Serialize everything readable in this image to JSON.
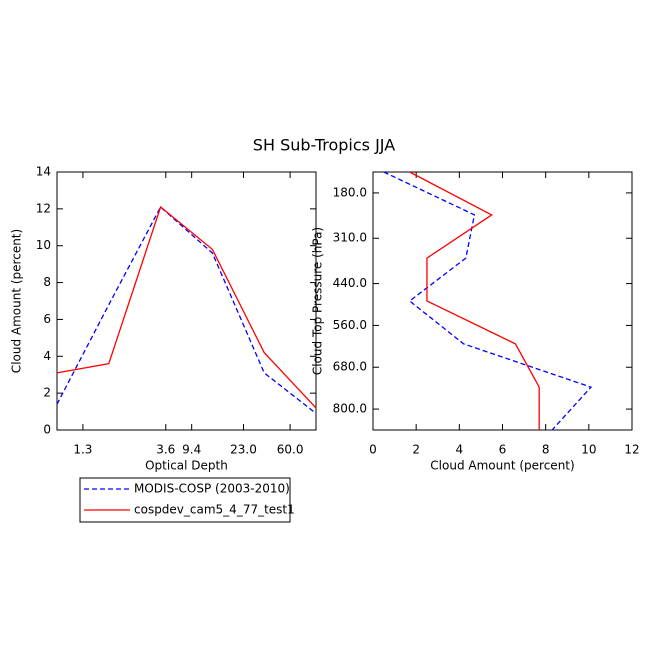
{
  "title": "SH Sub-Tropics JJA",
  "chart_data": [
    {
      "type": "line",
      "x_label": "Optical Depth",
      "y_label": "Cloud Amount (percent)",
      "x": [
        0,
        1,
        2,
        3,
        4,
        5
      ],
      "xlim": [
        0,
        5
      ],
      "xticks": [
        {
          "value": 0.5,
          "label": "1.3"
        },
        {
          "value": 2.1,
          "label": "3.6"
        },
        {
          "value": 2.6,
          "label": "9.4"
        },
        {
          "value": 3.6,
          "label": "23.0"
        },
        {
          "value": 4.5,
          "label": "60.0"
        }
      ],
      "ylim": [
        0,
        14
      ],
      "yticks": [
        0,
        2,
        4,
        6,
        8,
        10,
        12,
        14
      ],
      "series": [
        {
          "name": "MODIS-COSP (2003-2010)",
          "color": "#0000ff",
          "dash": true,
          "values": [
            1.4,
            6.8,
            12.1,
            9.6,
            3.1,
            0.9
          ]
        },
        {
          "name": "cospdev_cam5_4_77_test1",
          "color": "#ff0000",
          "dash": false,
          "values": [
            3.1,
            3.6,
            12.1,
            9.8,
            4.2,
            1.2
          ]
        }
      ]
    },
    {
      "type": "hline",
      "x_label": "Cloud Amount (percent)",
      "y_label": "Cloud Top Pressure (hPa)",
      "y": [
        120,
        243,
        367,
        490,
        613,
        737,
        860
      ],
      "ylim": [
        120,
        860
      ],
      "y_reversed": true,
      "yticks": [
        {
          "value": 180,
          "label": "180.0"
        },
        {
          "value": 310,
          "label": "310.0"
        },
        {
          "value": 440,
          "label": "440.0"
        },
        {
          "value": 560,
          "label": "560.0"
        },
        {
          "value": 680,
          "label": "680.0"
        },
        {
          "value": 800,
          "label": "800.0"
        }
      ],
      "xlim": [
        0,
        12
      ],
      "xticks": [
        0,
        2,
        4,
        6,
        8,
        10,
        12
      ],
      "series": [
        {
          "color": "#0000ff",
          "dash": true,
          "values": [
            0.5,
            4.7,
            4.3,
            1.7,
            4.2,
            10.1,
            8.3
          ]
        },
        {
          "color": "#ff0000",
          "dash": false,
          "values": [
            1.7,
            5.5,
            2.5,
            2.5,
            6.6,
            7.7,
            7.7
          ]
        }
      ]
    }
  ]
}
